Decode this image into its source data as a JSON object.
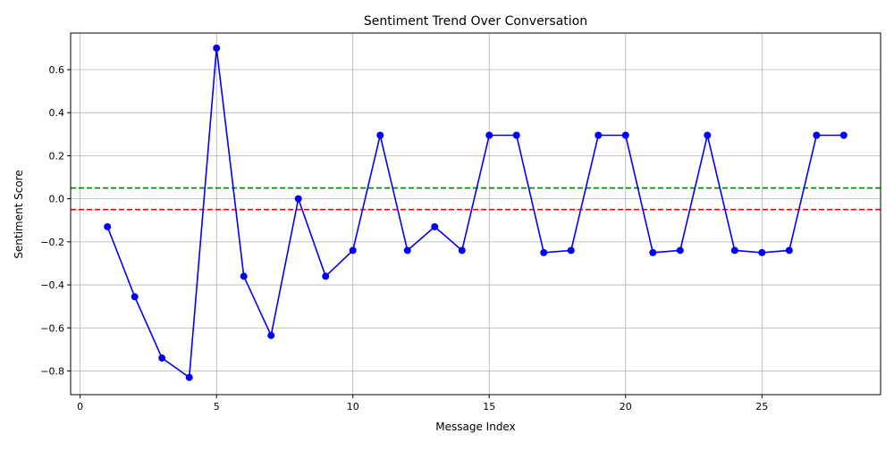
{
  "chart_data": {
    "type": "line",
    "title": "Sentiment Trend Over Conversation",
    "xlabel": "Message Index",
    "ylabel": "Sentiment Score",
    "xlim": [
      -0.35,
      29.35
    ],
    "ylim": [
      -0.91,
      0.77
    ],
    "xticks": [
      0,
      5,
      10,
      15,
      20,
      25
    ],
    "yticks": [
      -0.8,
      -0.6,
      -0.4,
      -0.2,
      0.0,
      0.2,
      0.4,
      0.6
    ],
    "xtick_labels": [
      "0",
      "5",
      "10",
      "15",
      "20",
      "25"
    ],
    "ytick_labels": [
      "−0.8",
      "−0.6",
      "−0.4",
      "−0.2",
      "0.0",
      "0.2",
      "0.4",
      "0.6"
    ],
    "grid": true,
    "series": [
      {
        "color": "#0000ff",
        "marker": "circle",
        "x": [
          1,
          2,
          3,
          4,
          5,
          6,
          7,
          8,
          9,
          10,
          11,
          12,
          13,
          14,
          15,
          16,
          17,
          18,
          19,
          20,
          21,
          22,
          23,
          24,
          25,
          26,
          27,
          28
        ],
        "y": [
          -0.13,
          -0.455,
          -0.74,
          -0.83,
          0.7,
          -0.36,
          -0.635,
          0.0,
          -0.36,
          -0.24,
          0.295,
          -0.24,
          -0.13,
          -0.24,
          0.295,
          0.295,
          -0.25,
          -0.24,
          0.295,
          0.295,
          -0.25,
          -0.24,
          0.295,
          -0.24,
          -0.25,
          -0.24,
          0.295,
          0.295
        ]
      }
    ],
    "reference_lines": [
      {
        "y": 0.05,
        "color": "#008000",
        "style": "dashed"
      },
      {
        "y": -0.05,
        "color": "#ff0000",
        "style": "dashed"
      }
    ]
  }
}
